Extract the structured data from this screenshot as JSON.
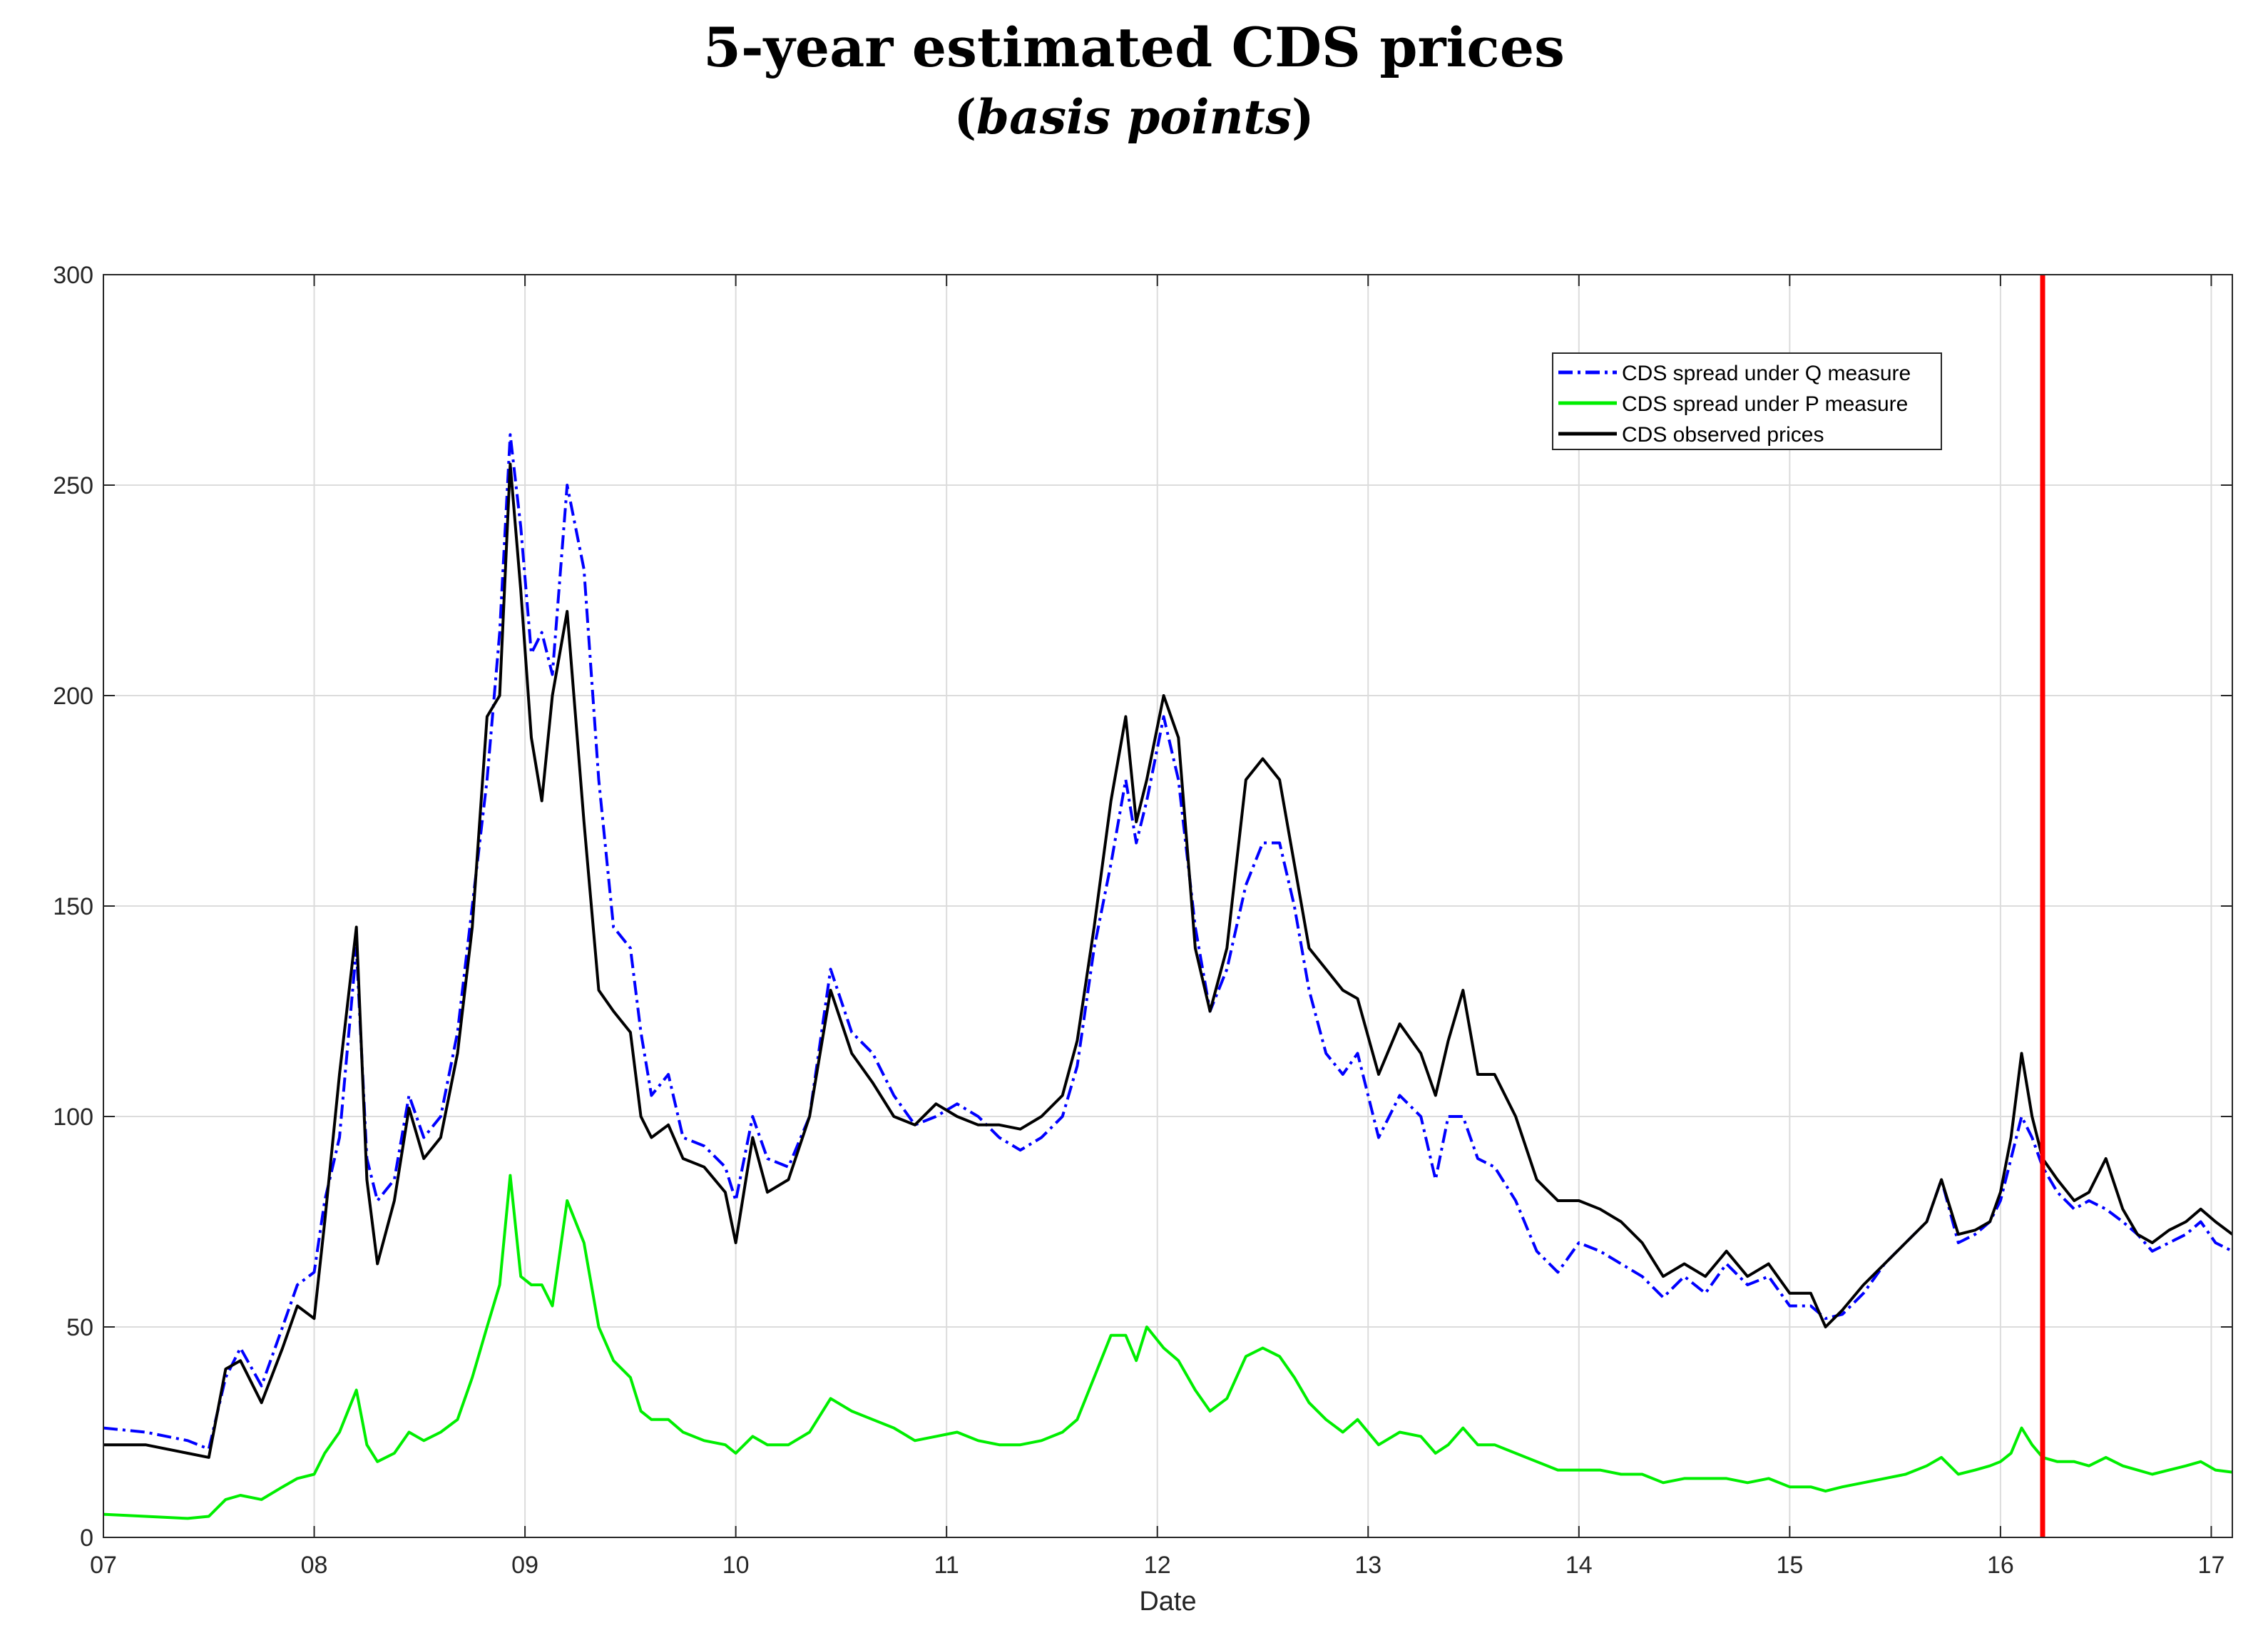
{
  "chart_data": {
    "type": "line",
    "title": "5-year estimated CDS prices",
    "subtitle_open": "(",
    "subtitle_italic": "basis points",
    "subtitle_close": ")",
    "xlabel": "Date",
    "ylabel": "",
    "xlim": [
      7,
      17.1
    ],
    "ylim": [
      0,
      300
    ],
    "x_ticks": [
      7,
      8,
      9,
      10,
      11,
      12,
      13,
      14,
      15,
      16,
      17
    ],
    "x_tick_labels": [
      "07",
      "08",
      "09",
      "10",
      "11",
      "12",
      "13",
      "14",
      "15",
      "16",
      "17"
    ],
    "y_ticks": [
      0,
      50,
      100,
      150,
      200,
      250,
      300
    ],
    "y_tick_labels": [
      "0",
      "50",
      "100",
      "150",
      "200",
      "250",
      "300"
    ],
    "grid": true,
    "legend_position": "top-right",
    "vertical_marker": {
      "x": 16.2,
      "color": "#ff0000"
    },
    "series": [
      {
        "name": "CDS spread under Q measure",
        "color": "#0000ff",
        "style": "dash-dot",
        "x": [
          7.0,
          7.2,
          7.4,
          7.5,
          7.58,
          7.65,
          7.75,
          7.85,
          7.92,
          8.0,
          8.05,
          8.12,
          8.2,
          8.25,
          8.3,
          8.38,
          8.45,
          8.52,
          8.6,
          8.68,
          8.75,
          8.82,
          8.88,
          8.93,
          8.98,
          9.03,
          9.08,
          9.13,
          9.2,
          9.28,
          9.35,
          9.42,
          9.5,
          9.55,
          9.6,
          9.68,
          9.75,
          9.85,
          9.95,
          10.0,
          10.08,
          10.15,
          10.25,
          10.35,
          10.45,
          10.55,
          10.65,
          10.75,
          10.85,
          10.95,
          11.05,
          11.15,
          11.25,
          11.35,
          11.45,
          11.55,
          11.62,
          11.7,
          11.78,
          11.85,
          11.9,
          11.95,
          12.03,
          12.1,
          12.18,
          12.25,
          12.33,
          12.42,
          12.5,
          12.58,
          12.65,
          12.72,
          12.8,
          12.88,
          12.95,
          13.05,
          13.15,
          13.25,
          13.32,
          13.38,
          13.45,
          13.52,
          13.6,
          13.7,
          13.8,
          13.9,
          14.0,
          14.1,
          14.2,
          14.3,
          14.4,
          14.5,
          14.6,
          14.7,
          14.8,
          14.9,
          15.0,
          15.1,
          15.17,
          15.25,
          15.35,
          15.45,
          15.55,
          15.65,
          15.72,
          15.8,
          15.88,
          15.95,
          16.0,
          16.05,
          16.1,
          16.15,
          16.2,
          16.27,
          16.35,
          16.42,
          16.5,
          16.58,
          16.65,
          16.72,
          16.8,
          16.88,
          16.95,
          17.02,
          17.1
        ],
        "y": [
          26,
          25,
          23,
          21,
          38,
          45,
          36,
          50,
          60,
          63,
          80,
          95,
          140,
          90,
          80,
          85,
          105,
          95,
          100,
          120,
          150,
          180,
          215,
          262,
          240,
          210,
          215,
          205,
          250,
          230,
          180,
          145,
          140,
          120,
          105,
          110,
          95,
          93,
          88,
          80,
          100,
          90,
          88,
          100,
          135,
          120,
          115,
          105,
          98,
          100,
          103,
          100,
          95,
          92,
          95,
          100,
          112,
          140,
          160,
          180,
          165,
          175,
          195,
          180,
          145,
          125,
          135,
          155,
          165,
          165,
          150,
          130,
          115,
          110,
          115,
          95,
          105,
          100,
          85,
          100,
          100,
          90,
          88,
          80,
          68,
          63,
          70,
          68,
          65,
          62,
          57,
          62,
          58,
          65,
          60,
          62,
          55,
          55,
          52,
          53,
          58,
          65,
          70,
          75,
          85,
          70,
          72,
          75,
          80,
          90,
          100,
          95,
          88,
          82,
          78,
          80,
          78,
          75,
          72,
          68,
          70,
          72,
          75,
          70,
          68
        ]
      },
      {
        "name": "CDS spread under P measure",
        "color": "#00ee00",
        "style": "solid",
        "x": [
          7.0,
          7.2,
          7.4,
          7.5,
          7.58,
          7.65,
          7.75,
          7.85,
          7.92,
          8.0,
          8.05,
          8.12,
          8.2,
          8.25,
          8.3,
          8.38,
          8.45,
          8.52,
          8.6,
          8.68,
          8.75,
          8.82,
          8.88,
          8.93,
          8.98,
          9.03,
          9.08,
          9.13,
          9.2,
          9.28,
          9.35,
          9.42,
          9.5,
          9.55,
          9.6,
          9.68,
          9.75,
          9.85,
          9.95,
          10.0,
          10.08,
          10.15,
          10.25,
          10.35,
          10.45,
          10.55,
          10.65,
          10.75,
          10.85,
          10.95,
          11.05,
          11.15,
          11.25,
          11.35,
          11.45,
          11.55,
          11.62,
          11.7,
          11.78,
          11.85,
          11.9,
          11.95,
          12.03,
          12.1,
          12.18,
          12.25,
          12.33,
          12.42,
          12.5,
          12.58,
          12.65,
          12.72,
          12.8,
          12.88,
          12.95,
          13.05,
          13.15,
          13.25,
          13.32,
          13.38,
          13.45,
          13.52,
          13.6,
          13.7,
          13.8,
          13.9,
          14.0,
          14.1,
          14.2,
          14.3,
          14.4,
          14.5,
          14.6,
          14.7,
          14.8,
          14.9,
          15.0,
          15.1,
          15.17,
          15.25,
          15.35,
          15.45,
          15.55,
          15.65,
          15.72,
          15.8,
          15.88,
          15.95,
          16.0,
          16.05,
          16.1,
          16.15,
          16.2,
          16.27,
          16.35,
          16.42,
          16.5,
          16.58,
          16.65,
          16.72,
          16.8,
          16.88,
          16.95,
          17.02,
          17.1
        ],
        "y": [
          5.5,
          5,
          4.5,
          5,
          9,
          10,
          9,
          12,
          14,
          15,
          20,
          25,
          35,
          22,
          18,
          20,
          25,
          23,
          25,
          28,
          38,
          50,
          60,
          86,
          62,
          60,
          60,
          55,
          80,
          70,
          50,
          42,
          38,
          30,
          28,
          28,
          25,
          23,
          22,
          20,
          24,
          22,
          22,
          25,
          33,
          30,
          28,
          26,
          23,
          24,
          25,
          23,
          22,
          22,
          23,
          25,
          28,
          38,
          48,
          48,
          42,
          50,
          45,
          42,
          35,
          30,
          33,
          43,
          45,
          43,
          38,
          32,
          28,
          25,
          28,
          22,
          25,
          24,
          20,
          22,
          26,
          22,
          22,
          20,
          18,
          16,
          16,
          16,
          15,
          15,
          13,
          14,
          14,
          14,
          13,
          14,
          12,
          12,
          11,
          12,
          13,
          14,
          15,
          17,
          19,
          15,
          16,
          17,
          18,
          20,
          26,
          22,
          19,
          18,
          18,
          17,
          19,
          17,
          16,
          15,
          16,
          17,
          18,
          16,
          15.5
        ]
      },
      {
        "name": "CDS observed prices",
        "color": "#000000",
        "style": "solid",
        "x": [
          7.0,
          7.2,
          7.4,
          7.5,
          7.58,
          7.65,
          7.75,
          7.85,
          7.92,
          8.0,
          8.05,
          8.12,
          8.2,
          8.25,
          8.3,
          8.38,
          8.45,
          8.52,
          8.6,
          8.68,
          8.75,
          8.82,
          8.88,
          8.93,
          8.98,
          9.03,
          9.08,
          9.13,
          9.2,
          9.28,
          9.35,
          9.42,
          9.5,
          9.55,
          9.6,
          9.68,
          9.75,
          9.85,
          9.95,
          10.0,
          10.08,
          10.15,
          10.25,
          10.35,
          10.45,
          10.55,
          10.65,
          10.75,
          10.85,
          10.95,
          11.05,
          11.15,
          11.25,
          11.35,
          11.45,
          11.55,
          11.62,
          11.7,
          11.78,
          11.85,
          11.9,
          11.95,
          12.03,
          12.1,
          12.18,
          12.25,
          12.33,
          12.42,
          12.5,
          12.58,
          12.65,
          12.72,
          12.8,
          12.88,
          12.95,
          13.05,
          13.15,
          13.25,
          13.32,
          13.38,
          13.45,
          13.52,
          13.6,
          13.7,
          13.8,
          13.9,
          14.0,
          14.1,
          14.2,
          14.3,
          14.4,
          14.5,
          14.6,
          14.7,
          14.8,
          14.9,
          15.0,
          15.1,
          15.17,
          15.25,
          15.35,
          15.45,
          15.55,
          15.65,
          15.72,
          15.8,
          15.88,
          15.95,
          16.0,
          16.05,
          16.1,
          16.15,
          16.2,
          16.27,
          16.35,
          16.42,
          16.5,
          16.58,
          16.65,
          16.72,
          16.8,
          16.88,
          16.95,
          17.02,
          17.1
        ],
        "y": [
          22,
          22,
          20,
          19,
          40,
          42,
          32,
          45,
          55,
          52,
          75,
          110,
          145,
          85,
          65,
          80,
          102,
          90,
          95,
          115,
          145,
          195,
          200,
          255,
          225,
          190,
          175,
          200,
          220,
          170,
          130,
          125,
          120,
          100,
          95,
          98,
          90,
          88,
          82,
          70,
          95,
          82,
          85,
          100,
          130,
          115,
          108,
          100,
          98,
          103,
          100,
          98,
          98,
          97,
          100,
          105,
          118,
          145,
          175,
          195,
          170,
          180,
          200,
          190,
          140,
          125,
          140,
          180,
          185,
          180,
          160,
          140,
          135,
          130,
          128,
          110,
          122,
          115,
          105,
          118,
          130,
          110,
          110,
          100,
          85,
          80,
          80,
          78,
          75,
          70,
          62,
          65,
          62,
          68,
          62,
          65,
          58,
          58,
          50,
          54,
          60,
          65,
          70,
          75,
          85,
          72,
          73,
          75,
          82,
          95,
          115,
          100,
          90,
          85,
          80,
          82,
          90,
          78,
          72,
          70,
          73,
          75,
          78,
          75,
          72
        ]
      }
    ]
  }
}
